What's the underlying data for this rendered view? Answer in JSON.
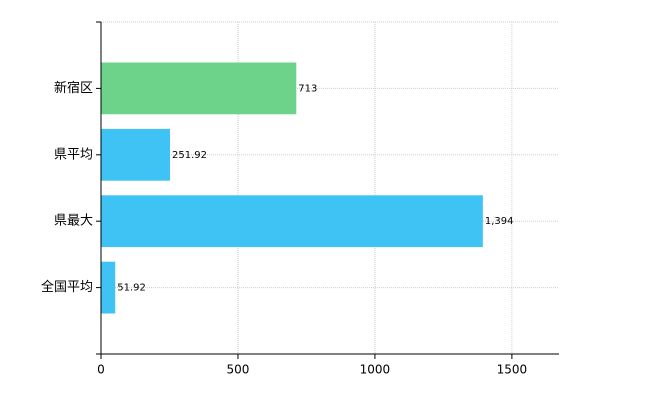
{
  "chart_data": {
    "type": "bar",
    "orientation": "horizontal",
    "categories": [
      "新宿区",
      "県平均",
      "県最大",
      "全国平均"
    ],
    "values": [
      713,
      251.92,
      1394,
      51.92
    ],
    "value_labels": [
      "713",
      "251.92",
      "1,394",
      "51.92"
    ],
    "colors": [
      "#6dd38a",
      "#3fc3f5",
      "#3fc3f5",
      "#3fc3f5"
    ],
    "xlim": [
      0,
      1672
    ],
    "xticks": [
      0,
      500,
      1000,
      1500
    ],
    "grid": true
  }
}
